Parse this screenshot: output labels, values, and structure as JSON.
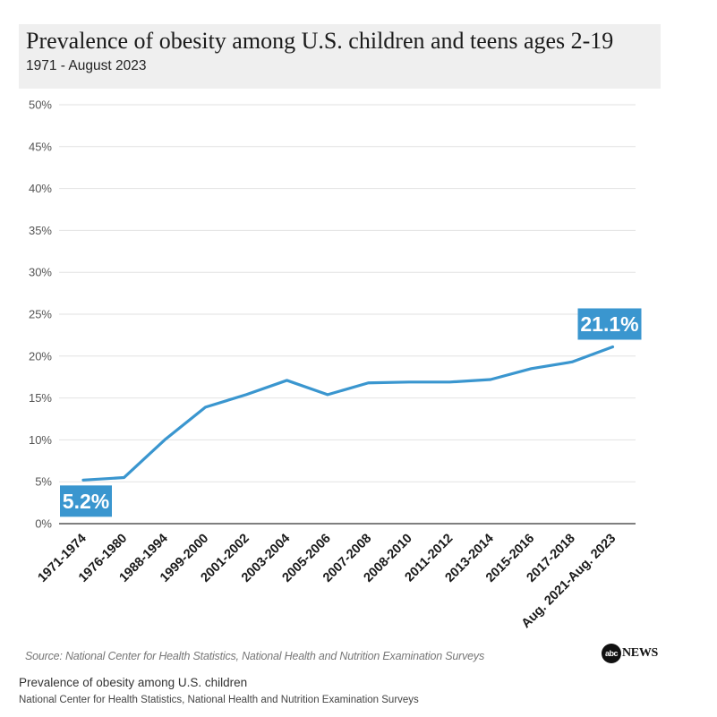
{
  "chart_data": {
    "type": "line",
    "title": "Prevalence of obesity among U.S. children and teens ages 2-19",
    "subtitle": "1971 - August 2023",
    "categories": [
      "1971-1974",
      "1976-1980",
      "1988-1994",
      "1999-2000",
      "2001-2002",
      "2003-2004",
      "2005-2006",
      "2007-2008",
      "2008-2010",
      "2011-2012",
      "2013-2014",
      "2015-2016",
      "2017-2018",
      "Aug. 2021-Aug. 2023"
    ],
    "series": [
      {
        "values": [
          5.2,
          5.5,
          10.0,
          13.9,
          15.4,
          17.1,
          15.4,
          16.8,
          16.9,
          16.9,
          17.2,
          18.5,
          19.3,
          21.1
        ]
      }
    ],
    "ylim": [
      0,
      50
    ],
    "yticks": [
      0,
      5,
      10,
      15,
      20,
      25,
      30,
      35,
      40,
      45,
      50
    ],
    "ytick_labels": [
      "0%",
      "5%",
      "10%",
      "15%",
      "20%",
      "25%",
      "30%",
      "35%",
      "40%",
      "45%",
      "50%"
    ],
    "grid": true,
    "line_color": "#3a96cf",
    "callouts": [
      {
        "index": 0,
        "label": "5.2%"
      },
      {
        "index": 13,
        "label": "21.1%"
      }
    ]
  },
  "source": "Source: National Center for Health Statistics, National Health and Nutrition Examination Surveys",
  "logo": {
    "circle_text": "abc",
    "text": "NEWS"
  },
  "caption": {
    "title": "Prevalence of obesity among U.S. children",
    "source": "National Center for Health Statistics, National Health and Nutrition Examination Surveys"
  }
}
